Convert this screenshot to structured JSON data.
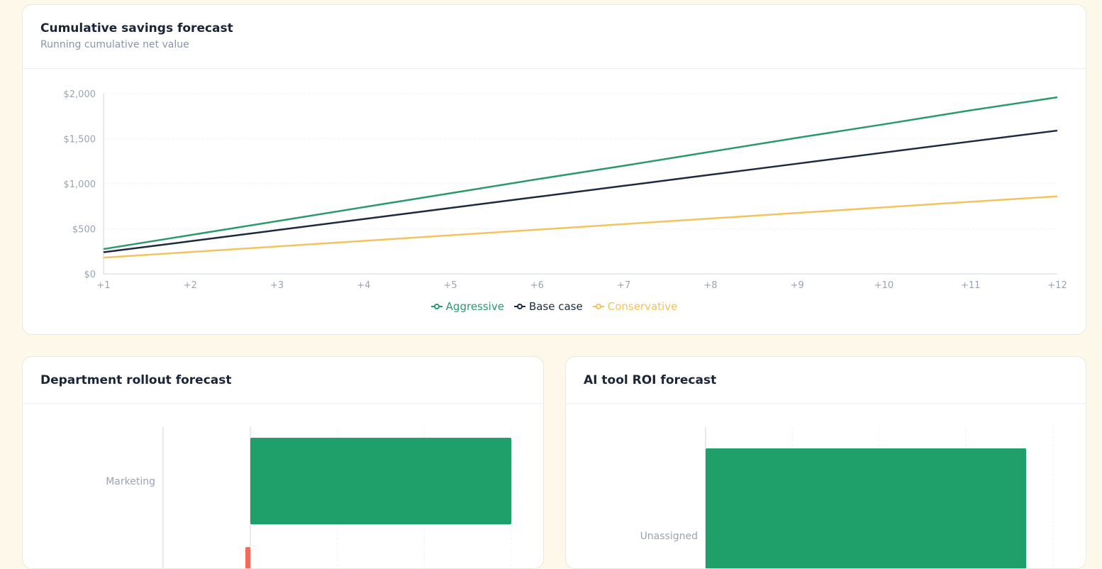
{
  "colors": {
    "aggressive": "#2a9a6c",
    "base": "#1e2a3f",
    "conservative": "#f2c35e",
    "bar_positive": "#1fa06a",
    "bar_negative": "#f26b5b",
    "grid": "#eef0f3",
    "axis": "#cfd5de",
    "tick": "#9aa3b2"
  },
  "savings_card": {
    "title": "Cumulative savings forecast",
    "subtitle": "Running cumulative net value"
  },
  "rollout_card": {
    "title": "Department rollout forecast"
  },
  "roi_card": {
    "title": "AI tool ROI forecast"
  },
  "chart_data": [
    {
      "type": "line",
      "x": [
        "+1",
        "+2",
        "+3",
        "+4",
        "+5",
        "+6",
        "+7",
        "+8",
        "+9",
        "+10",
        "+11",
        "+12"
      ],
      "y_ticks": [
        "$0",
        "$500",
        "$1,000",
        "$1,500",
        "$2,000"
      ],
      "ylim": [
        0,
        2000
      ],
      "grid": true,
      "legend_position": "bottom-center",
      "series": [
        {
          "name": "Aggressive",
          "color": "#2a9a6c",
          "values": [
            275,
            430,
            585,
            740,
            895,
            1050,
            1200,
            1355,
            1510,
            1660,
            1815,
            1960
          ]
        },
        {
          "name": "Base case",
          "color": "#1e2a3f",
          "values": [
            240,
            362,
            485,
            608,
            731,
            854,
            977,
            1100,
            1223,
            1346,
            1469,
            1590
          ]
        },
        {
          "name": "Conservative",
          "color": "#f2c35e",
          "values": [
            180,
            242,
            304,
            366,
            428,
            490,
            552,
            614,
            676,
            738,
            800,
            860
          ]
        }
      ]
    },
    {
      "type": "bar",
      "orientation": "horizontal",
      "categories": [
        "Marketing"
      ],
      "values": [
        3
      ],
      "negative_bar_partial": true,
      "grid": true
    },
    {
      "type": "bar",
      "orientation": "horizontal",
      "categories": [
        "Unassigned"
      ],
      "values": [
        3.7
      ],
      "grid": true
    }
  ]
}
